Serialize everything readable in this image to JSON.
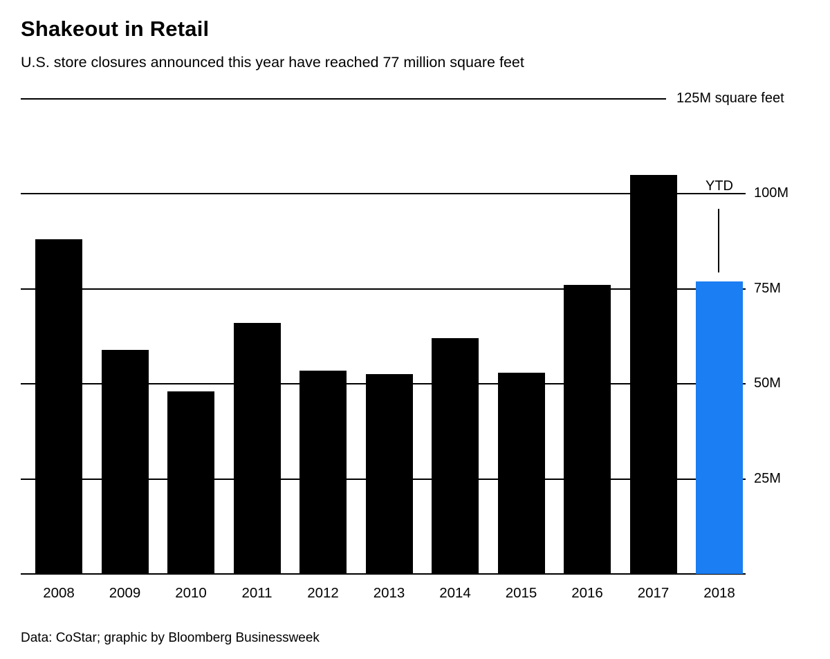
{
  "title": "Shakeout in Retail",
  "subtitle": "U.S. store closures announced this year have reached 77 million square feet",
  "footer": "Data: CoStar; graphic by Bloomberg Businessweek",
  "colors": {
    "background": "#ffffff",
    "bar_default": "#000000",
    "bar_highlight": "#1b7ef2",
    "gridline": "#000000",
    "text": "#000000"
  },
  "chart_data": {
    "type": "bar",
    "title": "Shakeout in Retail",
    "subtitle": "U.S. store closures announced this year have reached 77 million square feet",
    "unit": "million square feet",
    "categories": [
      "2008",
      "2009",
      "2010",
      "2011",
      "2012",
      "2013",
      "2014",
      "2015",
      "2016",
      "2017",
      "2018"
    ],
    "values": [
      88,
      59,
      48,
      66,
      53.5,
      52.5,
      62,
      53,
      76,
      105,
      77
    ],
    "ylim": [
      0,
      125
    ],
    "ytick_values": [
      25,
      50,
      75,
      100,
      125
    ],
    "ytick_labels": [
      "25M",
      "50M",
      "75M",
      "100M",
      "125M square feet"
    ],
    "grid": true,
    "legend": false,
    "highlight_category": "2018",
    "annotation": {
      "label": "YTD",
      "category": "2018"
    },
    "source_credit": "Data: CoStar; graphic by Bloomberg Businessweek"
  }
}
